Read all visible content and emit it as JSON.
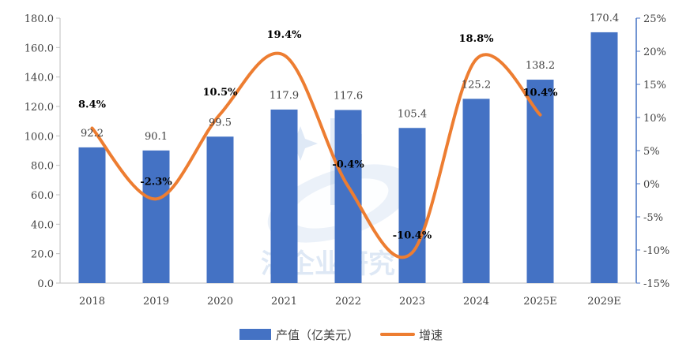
{
  "chart_data": {
    "type": "bar+line",
    "title": "",
    "categories": [
      "2018",
      "2019",
      "2020",
      "2021",
      "2022",
      "2023",
      "2024",
      "2025E",
      "2029E"
    ],
    "series": [
      {
        "name": "产值（亿美元）",
        "type": "bar",
        "axis": "left",
        "color": "#4472c4",
        "values": [
          92.2,
          90.1,
          99.5,
          117.9,
          117.6,
          105.4,
          125.2,
          138.2,
          170.4
        ],
        "labels": [
          "92.2",
          "90.1",
          "99.5",
          "117.9",
          "117.6",
          "105.4",
          "125.2",
          "138.2",
          "170.4"
        ]
      },
      {
        "name": "增速",
        "type": "line",
        "axis": "right",
        "color": "#ed7d31",
        "values": [
          8.4,
          -2.3,
          10.5,
          19.4,
          -0.4,
          -10.4,
          18.8,
          10.4,
          null
        ],
        "labels": [
          "8.4%",
          "-2.3%",
          "10.5%",
          "19.4%",
          "-0.4%",
          "-10.4%",
          "18.8%",
          "10.4%",
          ""
        ]
      }
    ],
    "y_left": {
      "min": 0,
      "max": 180,
      "step": 20,
      "tick_labels": [
        "0.0",
        "20.0",
        "40.0",
        "60.0",
        "80.0",
        "100.0",
        "120.0",
        "140.0",
        "160.0",
        "180.0"
      ]
    },
    "y_right": {
      "min": -15,
      "max": 25,
      "step": 5,
      "tick_labels": [
        "-15%",
        "-10%",
        "-5%",
        "0%",
        "5%",
        "10%",
        "15%",
        "20%",
        "25%"
      ]
    },
    "legend": {
      "position": "bottom",
      "items": [
        {
          "label": "产值（亿美元）",
          "marker": "bar",
          "color": "#4472c4"
        },
        {
          "label": "增速",
          "marker": "line",
          "color": "#ed7d31"
        }
      ]
    },
    "grid": false
  },
  "watermark": {
    "text": "湛企业研究"
  }
}
